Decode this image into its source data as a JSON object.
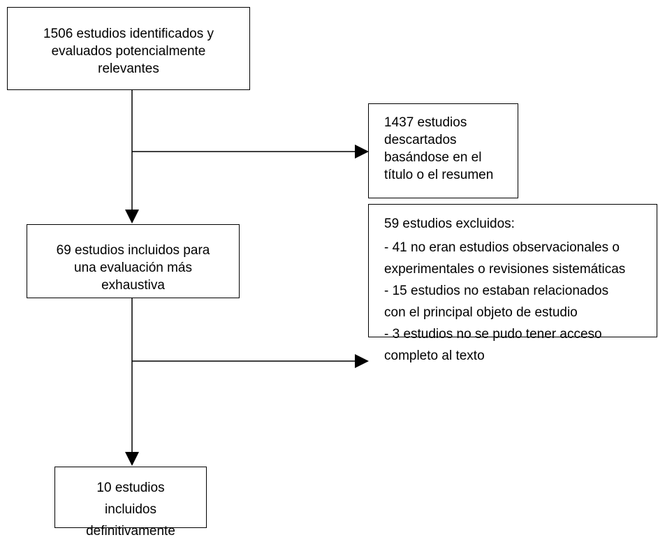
{
  "diagram": {
    "boxes": {
      "identified": {
        "lines": [
          "1506 estudios identificados y",
          "evaluados potencialmente",
          "relevantes"
        ]
      },
      "discarded": {
        "lines": [
          "1437 estudios",
          "descartados",
          "basándose en el",
          "título o el resumen"
        ]
      },
      "included": {
        "lines": [
          "69 estudios incluidos para",
          "una evaluación más",
          "exhaustiva"
        ]
      },
      "excluded": {
        "heading": "59 estudios excluidos:",
        "lines": [
          "- 41 no eran estudios observacionales o",
          "experimentales o revisiones sistemáticas",
          "- 15 estudios no estaban relacionados",
          "con el principal objeto de estudio",
          "- 3 estudios no se pudo tener acceso",
          "completo al texto"
        ]
      },
      "final": {
        "lines": [
          "10 estudios",
          "incluidos",
          "definitivamente"
        ]
      }
    }
  }
}
